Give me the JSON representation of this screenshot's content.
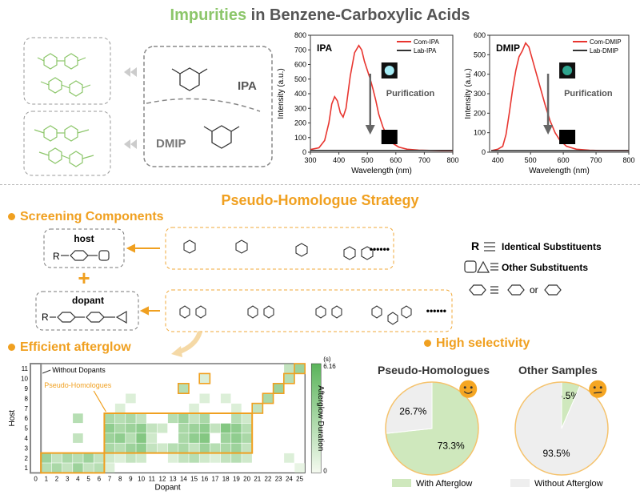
{
  "header": {
    "title_highlight": "Impurities",
    "title_rest": " in Benzene-Carboxylic Acids"
  },
  "top_panel": {
    "ipa_label": "IPA",
    "dmip_label": "DMIP"
  },
  "charts": [
    {
      "id": "ipa",
      "panel_label": "IPA",
      "legend": [
        "Com-IPA",
        "Lab-IPA"
      ],
      "annotation": "Purification",
      "xlabel": "Wavelength (nm)",
      "ylabel": "Intensity (a.u.)",
      "xticks": [
        300,
        400,
        500,
        600,
        700,
        800
      ],
      "yticks": [
        0,
        100,
        200,
        300,
        400,
        500,
        600,
        700,
        800
      ],
      "colors": {
        "com": "#e8352f",
        "lab": "#333333"
      }
    },
    {
      "id": "dmip",
      "panel_label": "DMIP",
      "legend": [
        "Com-DMIP",
        "Lab-DMIP"
      ],
      "annotation": "Purification",
      "xlabel": "Wavelength (nm)",
      "ylabel": "Intensity (a.u.)",
      "xticks": [
        400,
        500,
        600,
        700,
        800
      ],
      "yticks": [
        0,
        100,
        200,
        300,
        400,
        500,
        600
      ],
      "colors": {
        "com": "#e8352f",
        "lab": "#333333"
      }
    }
  ],
  "strategy": {
    "title": "Pseudo-Homologue Strategy",
    "screening_title": "Screening Components",
    "host_label": "host",
    "dopant_label": "dopant",
    "plus": "+",
    "host_R": "R",
    "dopant_R": "R",
    "dots": "••••••",
    "legend_R": "R",
    "legend_items": [
      "Identical Substituents",
      "Other Substituents",
      "or"
    ]
  },
  "afterglow": {
    "title": "Efficient afterglow",
    "without_dopants": "Without Dopants",
    "pseudo_homologues": "Pseudo-Homologues",
    "xlabel": "Dopant",
    "ylabel": "Host",
    "colorbar_label": "Afterglow Duration",
    "colorbar_unit": "(s)",
    "colorbar_max": "6.16",
    "colorbar_min": "0",
    "xticks": [
      "0",
      "1",
      "2",
      "3",
      "4",
      "5",
      "6",
      "7",
      "8",
      "9",
      "10",
      "11",
      "12",
      "13",
      "14",
      "15",
      "16",
      "17",
      "18",
      "19",
      "20",
      "21",
      "22",
      "23",
      "24",
      "25"
    ],
    "yticks": [
      "1",
      "2",
      "3",
      "4",
      "5",
      "6",
      "7",
      "8",
      "9",
      "10",
      "11"
    ]
  },
  "selectivity": {
    "title": "High selectivity",
    "pie1_title": "Pseudo-Homologues",
    "pie2_title": "Other Samples",
    "legend_with": "With Afterglow",
    "legend_without": "Without Afterglow"
  },
  "chart_data": [
    {
      "type": "line",
      "title": "IPA",
      "xlabel": "Wavelength (nm)",
      "ylabel": "Intensity (a.u.)",
      "xlim": [
        300,
        800
      ],
      "ylim": [
        0,
        800
      ],
      "series": [
        {
          "name": "Com-IPA",
          "x": [
            300,
            330,
            350,
            365,
            375,
            385,
            395,
            405,
            415,
            425,
            440,
            455,
            470,
            480,
            490,
            500,
            510,
            520,
            530,
            540,
            555,
            570,
            590,
            610,
            640,
            680,
            720,
            760,
            800
          ],
          "y": [
            18,
            30,
            80,
            200,
            330,
            380,
            350,
            270,
            240,
            300,
            520,
            680,
            730,
            700,
            620,
            560,
            500,
            430,
            350,
            260,
            170,
            110,
            60,
            35,
            20,
            14,
            12,
            10,
            10
          ]
        },
        {
          "name": "Lab-IPA",
          "x": [
            300,
            400,
            500,
            600,
            700,
            800
          ],
          "y": [
            12,
            12,
            12,
            12,
            12,
            12
          ]
        }
      ]
    },
    {
      "type": "line",
      "title": "DMIP",
      "xlabel": "Wavelength (nm)",
      "ylabel": "Intensity (a.u.)",
      "xlim": [
        375,
        800
      ],
      "ylim": [
        0,
        600
      ],
      "series": [
        {
          "name": "Com-DMIP",
          "x": [
            380,
            400,
            415,
            425,
            435,
            445,
            455,
            465,
            475,
            485,
            495,
            505,
            515,
            525,
            535,
            545,
            560,
            575,
            590,
            610,
            640,
            680,
            720,
            760,
            800
          ],
          "y": [
            8,
            15,
            30,
            90,
            200,
            320,
            420,
            490,
            520,
            560,
            540,
            480,
            420,
            360,
            300,
            240,
            160,
            100,
            60,
            30,
            15,
            10,
            8,
            8,
            8
          ]
        },
        {
          "name": "Lab-DMIP",
          "x": [
            380,
            500,
            600,
            700,
            800
          ],
          "y": [
            8,
            8,
            8,
            8,
            8
          ]
        }
      ]
    },
    {
      "type": "pie",
      "title": "Pseudo-Homologues",
      "labels": [
        "With Afterglow",
        "Without Afterglow"
      ],
      "values": [
        73.3,
        26.7
      ],
      "colors": [
        "#cfe8bd",
        "#eeeeee"
      ]
    },
    {
      "type": "pie",
      "title": "Other Samples",
      "labels": [
        "With Afterglow",
        "Without Afterglow"
      ],
      "values": [
        6.5,
        93.5
      ],
      "colors": [
        "#cfe8bd",
        "#eeeeee"
      ]
    },
    {
      "type": "heatmap",
      "xlabel": "Dopant",
      "ylabel": "Host",
      "x": [
        0,
        1,
        2,
        3,
        4,
        5,
        6,
        7,
        8,
        9,
        10,
        11,
        12,
        13,
        14,
        15,
        16,
        17,
        18,
        19,
        20,
        21,
        22,
        23,
        24,
        25
      ],
      "y": [
        1,
        2,
        3,
        4,
        5,
        6,
        7,
        8,
        9,
        10,
        11
      ],
      "value_range": [
        0,
        6.16
      ],
      "cells": [
        [
          1,
          1,
          2.5
        ],
        [
          1,
          2,
          3.0
        ],
        [
          1,
          3,
          2.0
        ],
        [
          1,
          4,
          3.5
        ],
        [
          1,
          5,
          2.0
        ],
        [
          1,
          6,
          2.5
        ],
        [
          1,
          7,
          1.0
        ],
        [
          1,
          25,
          0.5
        ],
        [
          2,
          1,
          3.5
        ],
        [
          2,
          2,
          2.0
        ],
        [
          2,
          3,
          3.0
        ],
        [
          2,
          4,
          2.5
        ],
        [
          2,
          5,
          3.5
        ],
        [
          2,
          6,
          2.0
        ],
        [
          2,
          7,
          1.5
        ],
        [
          2,
          8,
          1.0
        ],
        [
          2,
          9,
          2.0
        ],
        [
          2,
          10,
          1.5
        ],
        [
          2,
          13,
          1.0
        ],
        [
          2,
          14,
          2.0
        ],
        [
          2,
          15,
          2.5
        ],
        [
          2,
          16,
          1.5
        ],
        [
          2,
          17,
          1.0
        ],
        [
          2,
          18,
          2.0
        ],
        [
          2,
          19,
          2.5
        ],
        [
          2,
          20,
          1.5
        ],
        [
          2,
          24,
          1.0
        ],
        [
          3,
          7,
          3.0
        ],
        [
          3,
          8,
          2.5
        ],
        [
          3,
          9,
          3.5
        ],
        [
          3,
          10,
          4.0
        ],
        [
          3,
          11,
          2.0
        ],
        [
          3,
          12,
          1.5
        ],
        [
          3,
          13,
          2.5
        ],
        [
          3,
          14,
          3.0
        ],
        [
          3,
          15,
          2.0
        ],
        [
          3,
          16,
          3.5
        ],
        [
          3,
          17,
          2.5
        ],
        [
          3,
          18,
          3.0
        ],
        [
          3,
          19,
          3.5
        ],
        [
          3,
          20,
          2.0
        ],
        [
          4,
          7,
          3.5
        ],
        [
          4,
          8,
          4.0
        ],
        [
          4,
          9,
          2.5
        ],
        [
          4,
          10,
          4.5
        ],
        [
          4,
          11,
          1.5
        ],
        [
          4,
          14,
          3.0
        ],
        [
          4,
          15,
          4.0
        ],
        [
          4,
          16,
          4.5
        ],
        [
          4,
          18,
          3.5
        ],
        [
          4,
          19,
          4.0
        ],
        [
          4,
          20,
          3.0
        ],
        [
          4,
          4,
          2.0
        ],
        [
          5,
          7,
          4.0
        ],
        [
          5,
          8,
          3.0
        ],
        [
          5,
          9,
          3.5
        ],
        [
          5,
          10,
          4.0
        ],
        [
          5,
          11,
          2.0
        ],
        [
          5,
          12,
          1.5
        ],
        [
          5,
          14,
          3.0
        ],
        [
          5,
          15,
          3.5
        ],
        [
          5,
          16,
          4.0
        ],
        [
          5,
          17,
          2.0
        ],
        [
          5,
          18,
          4.5
        ],
        [
          5,
          19,
          4.0
        ],
        [
          5,
          20,
          2.5
        ],
        [
          6,
          7,
          3.0
        ],
        [
          6,
          8,
          2.5
        ],
        [
          6,
          9,
          3.0
        ],
        [
          6,
          10,
          2.0
        ],
        [
          6,
          13,
          2.5
        ],
        [
          6,
          14,
          3.5
        ],
        [
          6,
          15,
          2.0
        ],
        [
          6,
          16,
          3.0
        ],
        [
          6,
          19,
          2.5
        ],
        [
          6,
          20,
          1.5
        ],
        [
          6,
          4,
          2.5
        ],
        [
          7,
          21,
          2.0
        ],
        [
          7,
          8,
          1.0
        ],
        [
          7,
          15,
          1.0
        ],
        [
          7,
          19,
          1.0
        ],
        [
          8,
          22,
          3.0
        ],
        [
          8,
          9,
          1.0
        ],
        [
          8,
          16,
          1.0
        ],
        [
          8,
          18,
          1.0
        ],
        [
          9,
          23,
          3.5
        ],
        [
          9,
          14,
          2.5
        ],
        [
          10,
          24,
          2.5
        ],
        [
          10,
          16,
          1.0
        ],
        [
          11,
          25,
          3.5
        ],
        [
          11,
          24,
          2.0
        ]
      ]
    }
  ]
}
